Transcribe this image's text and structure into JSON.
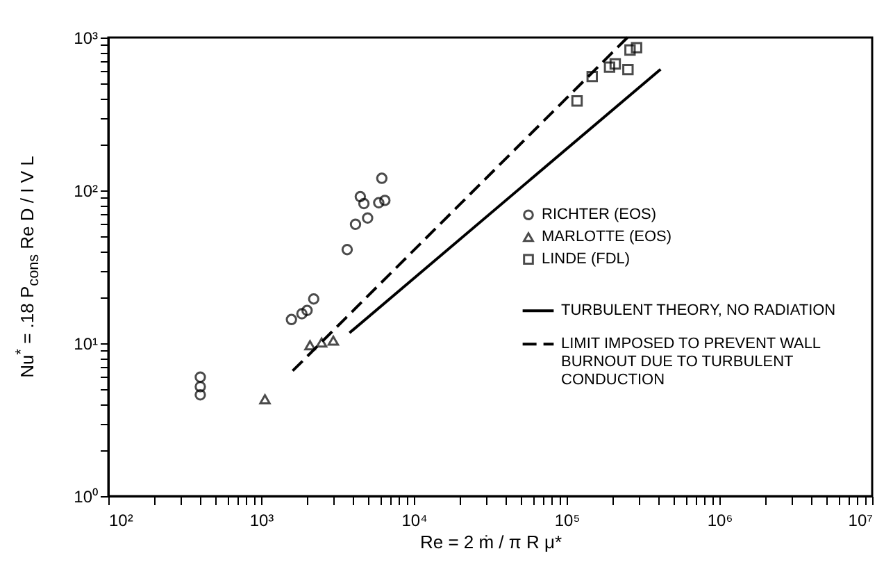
{
  "chart_data": {
    "type": "scatter",
    "xlabel": "Re = 2 ṁ / π R μ*",
    "ylabel": "Nu$^{*}$ = .18 P$_{cons}$ Re D / I V L",
    "log": "xy",
    "grid": false,
    "legend": "right",
    "xlim": [
      100,
      10000000
    ],
    "ylim": [
      1,
      1000
    ],
    "xticks": [
      {
        "value": 100,
        "label": "10²"
      },
      {
        "value": 200,
        "label": null
      },
      {
        "value": 300,
        "label": null
      },
      {
        "value": 400,
        "label": null
      },
      {
        "value": 500,
        "label": null
      },
      {
        "value": 600,
        "label": null
      },
      {
        "value": 700,
        "label": null
      },
      {
        "value": 800,
        "label": null
      },
      {
        "value": 900,
        "label": null
      },
      {
        "value": 1000,
        "label": "10³"
      },
      {
        "value": 2000,
        "label": null
      },
      {
        "value": 3000,
        "label": null
      },
      {
        "value": 4000,
        "label": null
      },
      {
        "value": 5000,
        "label": null
      },
      {
        "value": 6000,
        "label": null
      },
      {
        "value": 7000,
        "label": null
      },
      {
        "value": 8000,
        "label": null
      },
      {
        "value": 9000,
        "label": null
      },
      {
        "value": 10000,
        "label": "10⁴"
      },
      {
        "value": 20000,
        "label": null
      },
      {
        "value": 30000,
        "label": null
      },
      {
        "value": 40000,
        "label": null
      },
      {
        "value": 50000,
        "label": null
      },
      {
        "value": 60000,
        "label": null
      },
      {
        "value": 70000,
        "label": null
      },
      {
        "value": 80000,
        "label": null
      },
      {
        "value": 90000,
        "label": null
      },
      {
        "value": 100000,
        "label": "10⁵"
      },
      {
        "value": 200000,
        "label": null
      },
      {
        "value": 300000,
        "label": null
      },
      {
        "value": 400000,
        "label": null
      },
      {
        "value": 500000,
        "label": null
      },
      {
        "value": 600000,
        "label": null
      },
      {
        "value": 700000,
        "label": null
      },
      {
        "value": 800000,
        "label": null
      },
      {
        "value": 900000,
        "label": null
      },
      {
        "value": 1000000,
        "label": "10⁶"
      },
      {
        "value": 2000000,
        "label": null
      },
      {
        "value": 3000000,
        "label": null
      },
      {
        "value": 4000000,
        "label": null
      },
      {
        "value": 5000000,
        "label": null
      },
      {
        "value": 6000000,
        "label": null
      },
      {
        "value": 7000000,
        "label": null
      },
      {
        "value": 8000000,
        "label": null
      },
      {
        "value": 9000000,
        "label": null
      },
      {
        "value": 10000000,
        "label": "10⁷"
      }
    ],
    "yticks": [
      {
        "value": 1,
        "label": "10⁰"
      },
      {
        "value": 2,
        "label": null
      },
      {
        "value": 3,
        "label": null
      },
      {
        "value": 4,
        "label": null
      },
      {
        "value": 5,
        "label": null
      },
      {
        "value": 6,
        "label": null
      },
      {
        "value": 7,
        "label": null
      },
      {
        "value": 8,
        "label": null
      },
      {
        "value": 9,
        "label": null
      },
      {
        "value": 10,
        "label": "10¹"
      },
      {
        "value": 20,
        "label": null
      },
      {
        "value": 30,
        "label": null
      },
      {
        "value": 40,
        "label": null
      },
      {
        "value": 50,
        "label": null
      },
      {
        "value": 60,
        "label": null
      },
      {
        "value": 70,
        "label": null
      },
      {
        "value": 80,
        "label": null
      },
      {
        "value": 90,
        "label": null
      },
      {
        "value": 100,
        "label": "10²"
      },
      {
        "value": 200,
        "label": null
      },
      {
        "value": 300,
        "label": null
      },
      {
        "value": 400,
        "label": null
      },
      {
        "value": 500,
        "label": null
      },
      {
        "value": 600,
        "label": null
      },
      {
        "value": 700,
        "label": null
      },
      {
        "value": 800,
        "label": null
      },
      {
        "value": 900,
        "label": null
      },
      {
        "value": 1000,
        "label": "10³"
      }
    ],
    "series": [
      {
        "name": "RICHTER (EOS)",
        "marker": "circle",
        "color": "#000000",
        "x": [
          400,
          400,
          400,
          1580,
          1850,
          2000,
          2210,
          3660,
          4150,
          4460,
          4710,
          4980,
          5890,
          6460,
          6170
        ],
        "values": [
          6,
          5.2,
          4.6,
          14.3,
          15.6,
          16.4,
          19.5,
          41,
          60,
          91,
          82,
          66,
          83,
          86,
          120
        ]
      },
      {
        "name": "MARLOTTE (EOS)",
        "marker": "triangle",
        "color": "#000000",
        "x": [
          1060,
          2090,
          2490,
          2970
        ],
        "values": [
          4.3,
          9.7,
          10.1,
          10.4
        ]
      },
      {
        "name": "LINDE (FDL)",
        "marker": "square",
        "color": "#000000",
        "x": [
          117000,
          147000,
          191000,
          208000,
          252000,
          260000,
          287000
        ],
        "values": [
          385,
          556,
          640,
          672,
          617,
          828,
          858
        ]
      },
      {
        "name": "TURBULENT THEORY, NO RADIATION",
        "type": "line",
        "line_style": "solid",
        "color": "#000000",
        "x": [
          3790,
          412000
        ],
        "values": [
          11.7,
          620
        ]
      },
      {
        "name": "LIMIT IMPOSED TO PREVENT WALL BURNOUT DUE TO TURBULENT CONDUCTION",
        "type": "line",
        "line_style": "dashed",
        "color": "#000000",
        "x": [
          1610,
          250000
        ],
        "values": [
          6.6,
          1000
        ]
      }
    ]
  }
}
